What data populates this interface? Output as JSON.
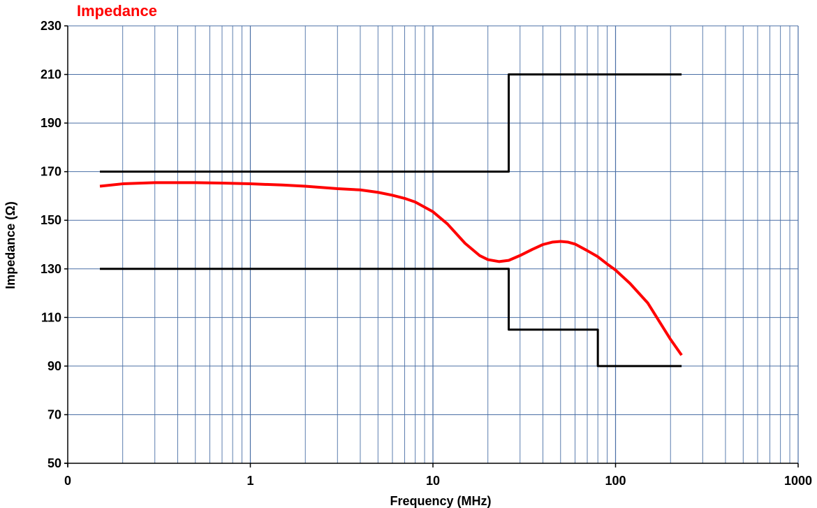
{
  "chart_data": {
    "type": "line",
    "title": "Impedance",
    "xlabel": "Frequency (MHz)",
    "ylabel": "Impedance (Ω)",
    "x_scale": "log",
    "xlim": [
      0.1,
      1000
    ],
    "ylim": [
      50,
      230
    ],
    "x_tick_labels": [
      "0",
      "1",
      "10",
      "100",
      "1000"
    ],
    "y_ticks": [
      50,
      70,
      90,
      110,
      130,
      150,
      170,
      190,
      210,
      230
    ],
    "grid": true,
    "legend": "none",
    "colors": {
      "measured": "#ff0000",
      "limits": "#000000",
      "grid": "#4a6fa5"
    },
    "series": [
      {
        "role": "measured",
        "x": [
          0.15,
          0.2,
          0.3,
          0.5,
          0.7,
          1,
          1.5,
          2,
          3,
          4,
          5,
          6,
          7,
          8,
          10,
          12,
          15,
          18,
          20,
          23,
          26,
          30,
          35,
          40,
          45,
          50,
          55,
          60,
          70,
          80,
          90,
          100,
          120,
          150,
          180,
          200,
          230
        ],
        "y": [
          164,
          165,
          165.5,
          165.5,
          165.3,
          165,
          164.5,
          164,
          163,
          162.5,
          161.5,
          160.3,
          159,
          157.5,
          153.5,
          148.5,
          140.5,
          135.5,
          133.8,
          133,
          133.5,
          135.5,
          138,
          140,
          141,
          141.3,
          141,
          140.2,
          137.5,
          135,
          132,
          129.5,
          124,
          116,
          106.5,
          101,
          94.5
        ]
      },
      {
        "role": "limits",
        "x": [
          0.15,
          26,
          26,
          230
        ],
        "y": [
          170,
          170,
          210,
          210
        ]
      },
      {
        "role": "limits",
        "x": [
          0.15,
          26,
          26,
          80,
          80,
          230
        ],
        "y": [
          130,
          130,
          105,
          105,
          90,
          90
        ]
      }
    ]
  }
}
